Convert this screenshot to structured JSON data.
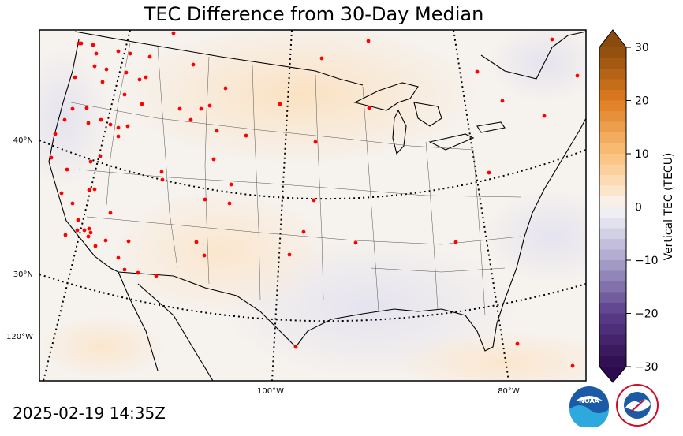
{
  "title": "TEC Difference from 30-Day Median",
  "timestamp": "2025-02-19 14:35Z",
  "colorbar": {
    "label": "Vertical TEC (TECU)",
    "ticks": [
      "30",
      "20",
      "10",
      "0",
      "−10",
      "−20",
      "−30"
    ],
    "range": [
      -30,
      30
    ]
  },
  "graticule": {
    "lat_labels": [
      "40°N",
      "30°N"
    ],
    "lon_labels": [
      "120°W",
      "100°W",
      "80°W"
    ]
  },
  "logos": {
    "noaa": "NOAA",
    "nws": "NATIONAL WEATHER SERVICE"
  },
  "colors": {
    "positive": "#8a4b0c",
    "negative": "#2d0b4e",
    "station": "#ff0000"
  },
  "chart_data": {
    "type": "heatmap",
    "title": "TEC Difference from 30-Day Median",
    "colorbar_label": "Vertical TEC (TECU)",
    "value_range": [
      -30,
      30
    ],
    "colormap": "PuOr (purple negative, orange positive)",
    "field_summary": "Weak positive anomaly (about +2 to +5 TECU) over the northern Plains and Great Lakes; near zero to slightly negative (about -1 to -3 TECU) over the south-central US and Gulf coast",
    "stations": "red dots marking GNSS receiver sites"
  }
}
